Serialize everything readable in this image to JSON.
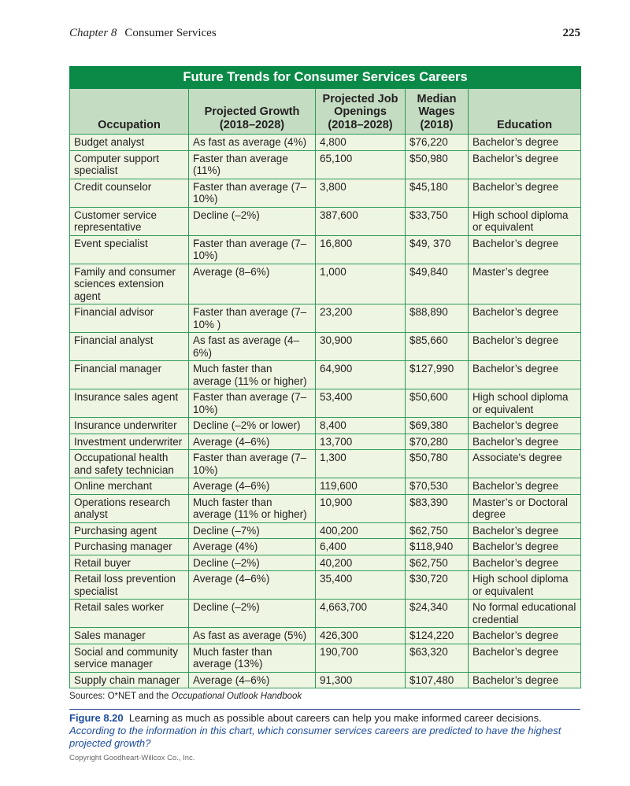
{
  "running_head": {
    "chapter": "Chapter 8",
    "section": "Consumer Services",
    "page": "225"
  },
  "table": {
    "title": "Future Trends for Consumer Services Careers",
    "columns": [
      "Occupation",
      "Projected Growth (2018–2028)",
      "Projected Job Openings (2018–2028)",
      "Median Wages (2018)",
      "Education"
    ],
    "rows": [
      [
        "Budget analyst",
        "As fast as average (4%)",
        "4,800",
        "$76,220",
        "Bachelor’s degree"
      ],
      [
        "Computer support specialist",
        "Faster than average (11%)",
        "65,100",
        "$50,980",
        "Bachelor’s degree"
      ],
      [
        "Credit counselor",
        "Faster than average (7–10%)",
        "3,800",
        "$45,180",
        "Bachelor’s degree"
      ],
      [
        "Customer service representative",
        "Decline (–2%)",
        "387,600",
        "$33,750",
        "High school diploma or equivalent"
      ],
      [
        "Event specialist",
        "Faster than average (7–10%)",
        "16,800",
        "$49, 370",
        "Bachelor’s degree"
      ],
      [
        "Family and consumer sciences extension agent",
        "Average (8–6%)",
        "1,000",
        "$49,840",
        "Master’s degree"
      ],
      [
        "Financial advisor",
        "Faster than average (7–10% )",
        "23,200",
        "$88,890",
        "Bachelor’s degree"
      ],
      [
        "Financial analyst",
        "As fast as average (4–6%)",
        "30,900",
        "$85,660",
        "Bachelor’s degree"
      ],
      [
        "Financial manager",
        "Much faster than average (11% or higher)",
        "64,900",
        "$127,990",
        "Bachelor’s degree"
      ],
      [
        "Insurance sales agent",
        "Faster than average (7–10%)",
        "53,400",
        "$50,600",
        "High school diploma or equivalent"
      ],
      [
        "Insurance underwriter",
        "Decline (–2% or lower)",
        "8,400",
        "$69,380",
        "Bachelor’s degree"
      ],
      [
        "Investment underwriter",
        "Average (4–6%)",
        "13,700",
        "$70,280",
        "Bachelor’s degree"
      ],
      [
        "Occupational health and safety technician",
        "Faster than average (7–10%)",
        "1,300",
        "$50,780",
        "Associate's degree"
      ],
      [
        "Online merchant",
        "Average (4–6%)",
        "119,600",
        "$70,530",
        "Bachelor’s degree"
      ],
      [
        "Operations research analyst",
        "Much faster than average (11% or higher)",
        "10,900",
        "$83,390",
        "Master’s or Doctoral degree"
      ],
      [
        "Purchasing agent",
        "Decline (–7%)",
        "400,200",
        "$62,750",
        "Bachelor’s degree"
      ],
      [
        "Purchasing manager",
        "Average (4%)",
        "6,400",
        "$118,940",
        "Bachelor’s degree"
      ],
      [
        "Retail buyer",
        "Decline (–2%)",
        "40,200",
        "$62,750",
        "Bachelor’s degree"
      ],
      [
        "Retail loss prevention specialist",
        "Average (4–6%)",
        "35,400",
        "$30,720",
        "High school diploma or equivalent"
      ],
      [
        "Retail sales worker",
        "Decline (–2%)",
        "4,663,700",
        "$24,340",
        "No formal educational credential"
      ],
      [
        "Sales manager",
        "As fast as average (5%)",
        "426,300",
        "$124,220",
        "Bachelor’s degree"
      ],
      [
        "Social and community service manager",
        "Much faster than average (13%)",
        "190,700",
        "$63,320",
        "Bachelor’s degree"
      ],
      [
        "Supply chain manager",
        "Average (4–6%)",
        "91,300",
        "$107,480",
        "Bachelor’s degree"
      ]
    ]
  },
  "sources": {
    "prefix": "Sources: O*NET and the ",
    "title": "Occupational Outlook Handbook"
  },
  "caption": {
    "label": "Figure 8.20",
    "text": "Learning as much as possible about careers can help you make informed career decisions.",
    "question": "According to the information in this chart, which consumer services careers are predicted to have the highest projected growth?"
  },
  "copyright": "Copyright Goodheart-Willcox Co., Inc.",
  "colors": {
    "title_bg": "#0b8a47",
    "header_bg": "#c3dcc2",
    "cell_bg": "#eef5e2",
    "border": "#2e9b5a",
    "caption_blue": "#1f4ea0"
  }
}
